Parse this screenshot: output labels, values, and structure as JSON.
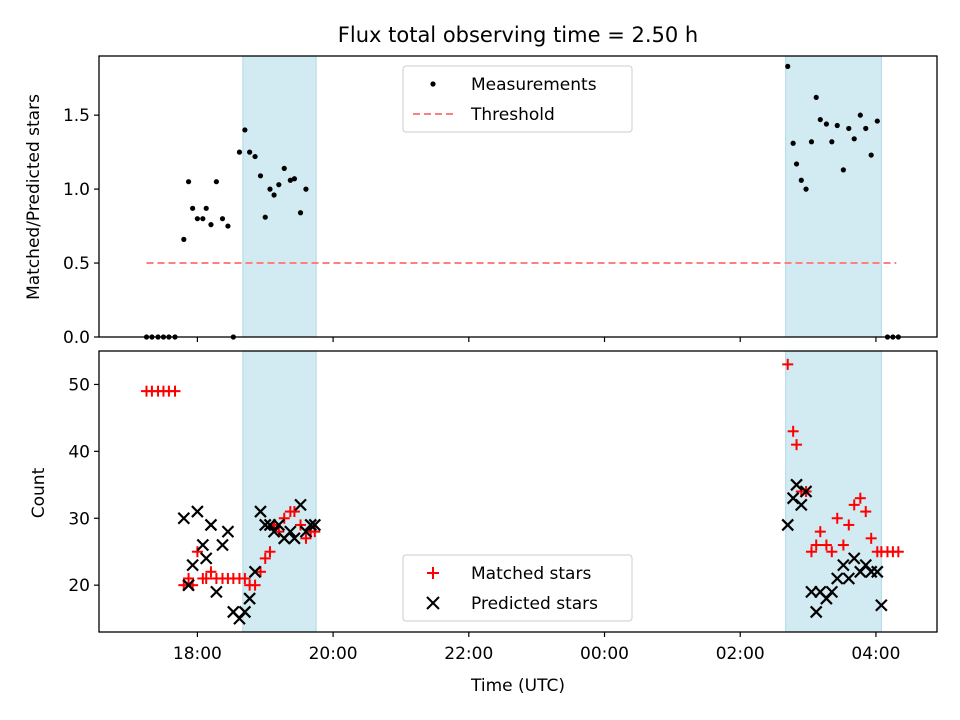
{
  "chart_data": {
    "type": "scatter",
    "title": "Flux total observing time = 2.50 h",
    "xlabel": "Time (UTC)",
    "x_unit": "hours since 00:00 UTC of the first day",
    "xlim": [
      16.55,
      28.9
    ],
    "xticks": [
      {
        "value": 18,
        "label": "18:00"
      },
      {
        "value": 20,
        "label": "20:00"
      },
      {
        "value": 22,
        "label": "22:00"
      },
      {
        "value": 24,
        "label": "00:00"
      },
      {
        "value": 26,
        "label": "02:00"
      },
      {
        "value": 28,
        "label": "04:00"
      }
    ],
    "shaded_intervals": [
      [
        18.67,
        19.75
      ],
      [
        26.67,
        28.08
      ]
    ],
    "shade_color": "#add8e6",
    "panels": [
      {
        "ylabel": "Matched/Predicted stars",
        "ylim": [
          0,
          1.9
        ],
        "yticks": [
          0.0,
          0.5,
          1.0,
          1.5
        ],
        "ytick_labels": [
          "0.0",
          "0.5",
          "1.0",
          "1.5"
        ],
        "legend": {
          "position": "top-center",
          "entries": [
            "Measurements",
            "Threshold"
          ]
        },
        "series": [
          {
            "name": "Measurements",
            "marker": "dot",
            "color": "#000000",
            "x": [
              17.25,
              17.33,
              17.42,
              17.5,
              17.58,
              17.67,
              17.8,
              17.87,
              17.93,
              18.0,
              18.08,
              18.13,
              18.2,
              18.28,
              18.37,
              18.45,
              18.53,
              18.62,
              18.7,
              18.77,
              18.85,
              18.93,
              19.0,
              19.07,
              19.13,
              19.2,
              19.28,
              19.37,
              19.43,
              19.52,
              19.6,
              19.67,
              19.73,
              26.7,
              26.78,
              26.83,
              26.9,
              26.97,
              27.05,
              27.12,
              27.18,
              27.27,
              27.35,
              27.43,
              27.52,
              27.6,
              27.68,
              27.77,
              27.85,
              27.93,
              28.02,
              28.08,
              28.17,
              28.25,
              28.33
            ],
            "y": [
              0,
              0,
              0,
              0,
              0,
              0,
              0.66,
              1.05,
              0.87,
              0.8,
              0.8,
              0.87,
              0.76,
              1.05,
              0.8,
              0.75,
              0,
              1.25,
              1.4,
              1.25,
              1.22,
              1.09,
              0.81,
              1.0,
              0.96,
              1.03,
              1.14,
              1.06,
              1.07,
              0.84,
              1.0,
              null,
              null,
              1.83,
              1.31,
              1.17,
              1.06,
              1.0,
              1.32,
              1.62,
              1.47,
              1.44,
              1.32,
              1.43,
              1.13,
              1.41,
              1.34,
              1.5,
              1.41,
              1.23,
              1.46,
              null,
              0,
              0,
              0
            ]
          },
          {
            "name": "Threshold",
            "style": "dashed line",
            "color": "#ff7f7f",
            "x": [
              17.25,
              28.3
            ],
            "y": [
              0.5,
              0.5
            ]
          }
        ]
      },
      {
        "ylabel": "Count",
        "ylim": [
          13,
          55
        ],
        "yticks": [
          20,
          30,
          40,
          50
        ],
        "ytick_labels": [
          "20",
          "30",
          "40",
          "50"
        ],
        "legend": {
          "position": "bottom-center",
          "entries": [
            "Matched stars",
            "Predicted stars"
          ]
        },
        "series": [
          {
            "name": "Matched stars",
            "marker": "plus",
            "color": "#ff0000",
            "x": [
              17.25,
              17.33,
              17.42,
              17.5,
              17.58,
              17.67,
              17.8,
              17.87,
              17.93,
              18.0,
              18.08,
              18.13,
              18.2,
              18.28,
              18.37,
              18.45,
              18.53,
              18.62,
              18.7,
              18.77,
              18.85,
              18.93,
              19.0,
              19.07,
              19.13,
              19.2,
              19.28,
              19.37,
              19.43,
              19.52,
              19.6,
              19.67,
              19.73,
              26.7,
              26.78,
              26.83,
              26.9,
              26.97,
              27.05,
              27.12,
              27.18,
              27.27,
              27.35,
              27.43,
              27.52,
              27.6,
              27.68,
              27.77,
              27.85,
              27.93,
              28.02,
              28.08,
              28.17,
              28.25,
              28.33
            ],
            "y": [
              49,
              49,
              49,
              49,
              49,
              49,
              20,
              21,
              20,
              25,
              21,
              21,
              22,
              21,
              21,
              21,
              21,
              21,
              21,
              20,
              20,
              22,
              24,
              25,
              29,
              28,
              30,
              31,
              31,
              29,
              27,
              28,
              28,
              53,
              43,
              41,
              34,
              34,
              25,
              26,
              28,
              26,
              25,
              30,
              26,
              29,
              32,
              33,
              31,
              27,
              25,
              25,
              25,
              25,
              25
            ]
          },
          {
            "name": "Predicted stars",
            "marker": "x",
            "color": "#000000",
            "x": [
              17.8,
              17.87,
              17.93,
              18.0,
              18.08,
              18.13,
              18.2,
              18.28,
              18.37,
              18.45,
              18.53,
              18.62,
              18.7,
              18.77,
              18.85,
              18.93,
              19.0,
              19.07,
              19.13,
              19.2,
              19.28,
              19.37,
              19.43,
              19.52,
              19.6,
              19.67,
              19.73,
              26.7,
              26.78,
              26.83,
              26.9,
              26.97,
              27.05,
              27.12,
              27.18,
              27.27,
              27.35,
              27.43,
              27.52,
              27.6,
              27.68,
              27.77,
              27.85,
              27.93,
              28.02,
              28.08
            ],
            "y": [
              30,
              20,
              23,
              31,
              26,
              24,
              29,
              19,
              26,
              28,
              16,
              15,
              16,
              18,
              22,
              31,
              29,
              29,
              28,
              29,
              27,
              28,
              27,
              32,
              28,
              29,
              29,
              29,
              33,
              35,
              32,
              34,
              19,
              16,
              19,
              18,
              19,
              21,
              23,
              21,
              24,
              22,
              23,
              22,
              22,
              17
            ]
          }
        ]
      }
    ]
  }
}
